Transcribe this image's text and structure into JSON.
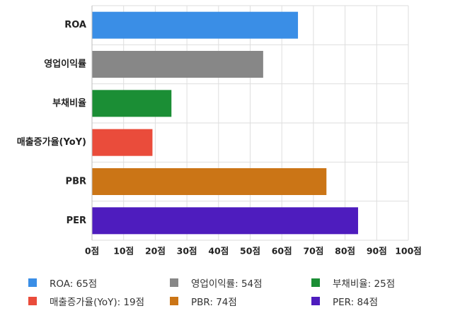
{
  "chart_data": {
    "type": "bar",
    "orientation": "horizontal",
    "categories": [
      "ROA",
      "영업이익률",
      "부채비율",
      "매출증가율(YoY)",
      "PBR",
      "PER"
    ],
    "values": [
      65,
      54,
      25,
      19,
      74,
      84
    ],
    "colors": [
      "#3a8ee6",
      "#878787",
      "#1b8e35",
      "#ea4c3b",
      "#cb7516",
      "#4e1cbe"
    ],
    "xlim": [
      0,
      100
    ],
    "x_ticks": [
      "0점",
      "10점",
      "20점",
      "30점",
      "40점",
      "50점",
      "60점",
      "70점",
      "80점",
      "90점",
      "100점"
    ],
    "grid": true,
    "legend_position": "bottom",
    "legend": [
      {
        "label": "ROA: 65점",
        "color": "#3a8ee6"
      },
      {
        "label": "영업이익률: 54점",
        "color": "#878787"
      },
      {
        "label": "부채비율: 25점",
        "color": "#1b8e35"
      },
      {
        "label": "매출증가율(YoY): 19점",
        "color": "#ea4c3b"
      },
      {
        "label": "PBR: 74점",
        "color": "#cb7516"
      },
      {
        "label": "PER: 84점",
        "color": "#4e1cbe"
      }
    ]
  }
}
